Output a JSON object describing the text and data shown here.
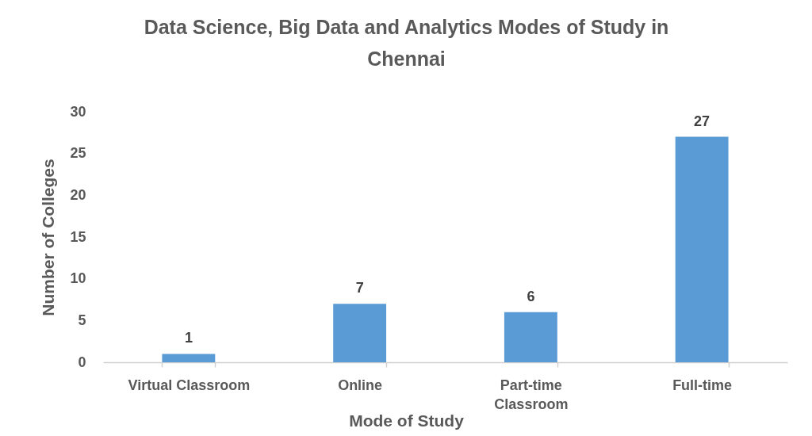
{
  "chart_data": {
    "type": "bar",
    "title": "Data Science, Big Data and Analytics Modes of Study in Chennai",
    "xlabel": "Mode of Study",
    "ylabel": "Number of Colleges",
    "categories": [
      "Virtual Classroom",
      "Online",
      "Part-time Classroom",
      "Full-time"
    ],
    "values": [
      1,
      7,
      6,
      27
    ],
    "color": "#5b9bd5",
    "ylim": [
      0,
      30
    ],
    "yticks": [
      0,
      5,
      10,
      15,
      20,
      25,
      30
    ],
    "data_labels": true
  }
}
